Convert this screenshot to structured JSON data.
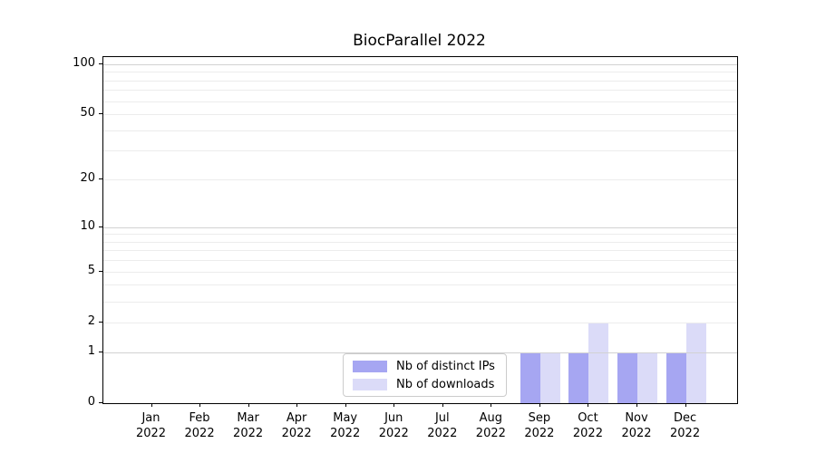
{
  "title": "BiocParallel 2022",
  "chart_data": {
    "type": "bar",
    "title": "BiocParallel 2022",
    "categories": [
      {
        "month": "Jan",
        "year": "2022"
      },
      {
        "month": "Feb",
        "year": "2022"
      },
      {
        "month": "Mar",
        "year": "2022"
      },
      {
        "month": "Apr",
        "year": "2022"
      },
      {
        "month": "May",
        "year": "2022"
      },
      {
        "month": "Jun",
        "year": "2022"
      },
      {
        "month": "Jul",
        "year": "2022"
      },
      {
        "month": "Aug",
        "year": "2022"
      },
      {
        "month": "Sep",
        "year": "2022"
      },
      {
        "month": "Oct",
        "year": "2022"
      },
      {
        "month": "Nov",
        "year": "2022"
      },
      {
        "month": "Dec",
        "year": "2022"
      }
    ],
    "series": [
      {
        "name": "Nb of distinct IPs",
        "color": "#a6a6f2",
        "values": [
          0,
          0,
          0,
          0,
          0,
          0,
          0,
          0,
          1,
          1,
          1,
          1
        ]
      },
      {
        "name": "Nb of downloads",
        "color": "#dbdbf8",
        "values": [
          0,
          0,
          0,
          0,
          0,
          0,
          0,
          0,
          1,
          2,
          1,
          2
        ]
      }
    ],
    "xlabel": "",
    "ylabel": "",
    "yscale": "log1p",
    "ylim": [
      0,
      110
    ],
    "yticks": [
      0,
      1,
      2,
      5,
      10,
      20,
      50,
      100
    ],
    "grid": {
      "major": [
        1,
        10,
        100
      ],
      "minor": [
        2,
        3,
        4,
        5,
        6,
        7,
        8,
        9,
        20,
        30,
        40,
        50,
        60,
        70,
        80,
        90
      ]
    },
    "legend_position": "lower center"
  },
  "colors": {
    "background": "#ffffff",
    "spine": "#000000",
    "grid_major": "#d2d2d2",
    "grid_minor": "#ececec",
    "legend_border": "#cccccc",
    "text": "#000000"
  }
}
